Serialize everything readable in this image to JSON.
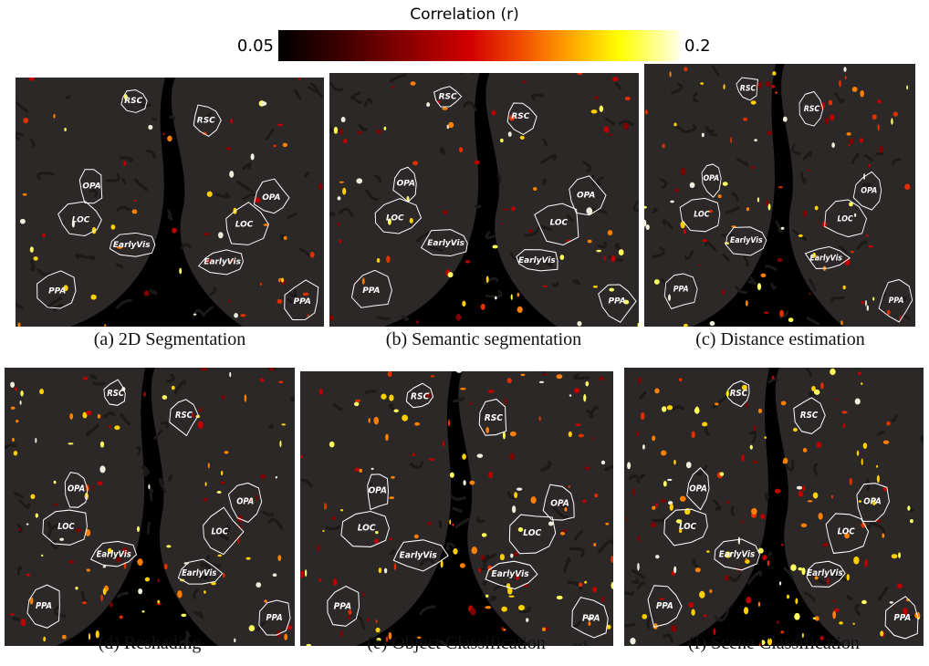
{
  "colorbar": {
    "title": "Correlation (r)",
    "min": 0.05,
    "max": 0.2
  },
  "panels": [
    {
      "caption": "(a) 2D Segmentation",
      "left_rois": [
        "RSC",
        "OPA",
        "LOC",
        "EarlyVis",
        "PPA"
      ],
      "right_rois": [
        "RSC",
        "OPA",
        "LOC",
        "EarlyVis",
        "PPA"
      ]
    },
    {
      "caption": "(b) Semantic segmentation",
      "left_rois": [
        "RSC",
        "OPA",
        "LOC",
        "EarlyVis",
        "PPA"
      ],
      "right_rois": [
        "RSC",
        "OPA",
        "LOC",
        "EarlyVis",
        "PPA"
      ]
    },
    {
      "caption": "(c) Distance estimation",
      "left_rois": [
        "RSC",
        "OPA",
        "LOC",
        "EarlyVis",
        "PPA"
      ],
      "right_rois": [
        "RSC",
        "OPA",
        "LOC",
        "EarlyVis",
        "PPA"
      ]
    },
    {
      "caption": "(d) Reshading",
      "left_rois": [
        "RSC",
        "OPA",
        "LOC",
        "EarlyVis",
        "PPA"
      ],
      "right_rois": [
        "RSC",
        "OPA",
        "LOC",
        "EarlyVis",
        "PPA"
      ]
    },
    {
      "caption": "(e) Object Classification",
      "left_rois": [
        "RSC",
        "OPA",
        "LOC",
        "EarlyVis",
        "PPA"
      ],
      "right_rois": [
        "RSC",
        "OPA",
        "LOC",
        "EarlyVis",
        "PPA"
      ]
    },
    {
      "caption": "(f) Scene Classification",
      "left_rois": [
        "RSC",
        "OPA",
        "LOC",
        "EarlyVis",
        "PPA"
      ],
      "right_rois": [
        "RSC",
        "OPA",
        "LOC",
        "EarlyVis",
        "PPA"
      ]
    }
  ]
}
